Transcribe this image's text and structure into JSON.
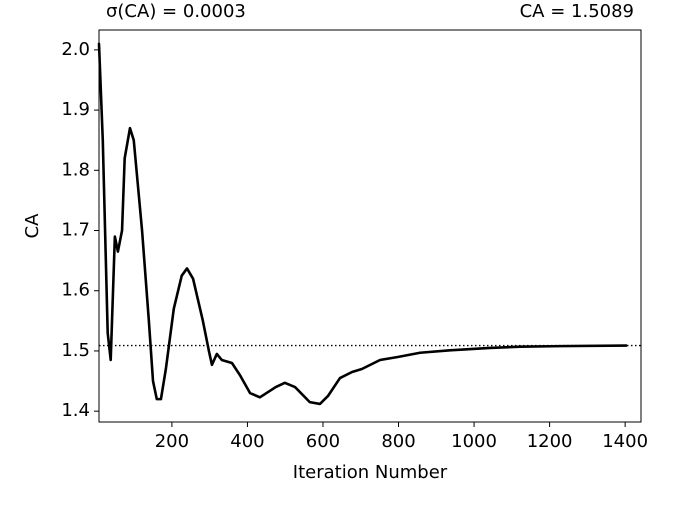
{
  "chart_data": {
    "type": "line",
    "title_left": "σ(CA) = 0.0003",
    "title_right": "CA = 1.5089",
    "x_label": "Iteration Number",
    "y_label": "CA",
    "x": [
      7,
      17,
      30,
      38,
      49,
      57,
      68,
      75,
      89,
      99,
      121,
      139,
      150,
      160,
      171,
      184,
      205,
      226,
      240,
      256,
      282,
      298,
      306,
      319,
      332,
      359,
      380,
      407,
      433,
      475,
      499,
      526,
      565,
      592,
      613,
      645,
      677,
      703,
      751,
      798,
      857,
      936,
      1042,
      1122,
      1228,
      1403
    ],
    "series": [
      {
        "name": "CA",
        "color": "#000000",
        "values": [
          2.01,
          1.85,
          1.53,
          1.485,
          1.69,
          1.665,
          1.7,
          1.82,
          1.87,
          1.85,
          1.7,
          1.55,
          1.45,
          1.42,
          1.42,
          1.47,
          1.57,
          1.625,
          1.637,
          1.62,
          1.55,
          1.5,
          1.477,
          1.495,
          1.485,
          1.48,
          1.46,
          1.43,
          1.423,
          1.44,
          1.447,
          1.44,
          1.415,
          1.412,
          1.425,
          1.455,
          1.465,
          1.47,
          1.485,
          1.49,
          1.497,
          1.501,
          1.505,
          1.507,
          1.508,
          1.509
        ]
      }
    ],
    "hline": 1.5089,
    "xlim": [
      7,
      1442
    ],
    "ylim": [
      1.382,
      2.033
    ],
    "xticks": [
      200,
      400,
      600,
      800,
      1000,
      1200,
      1400
    ],
    "yticks": [
      1.4,
      1.5,
      1.6,
      1.7,
      1.8,
      1.9,
      {
        "value": 2.0,
        "label": "2.0"
      }
    ]
  }
}
